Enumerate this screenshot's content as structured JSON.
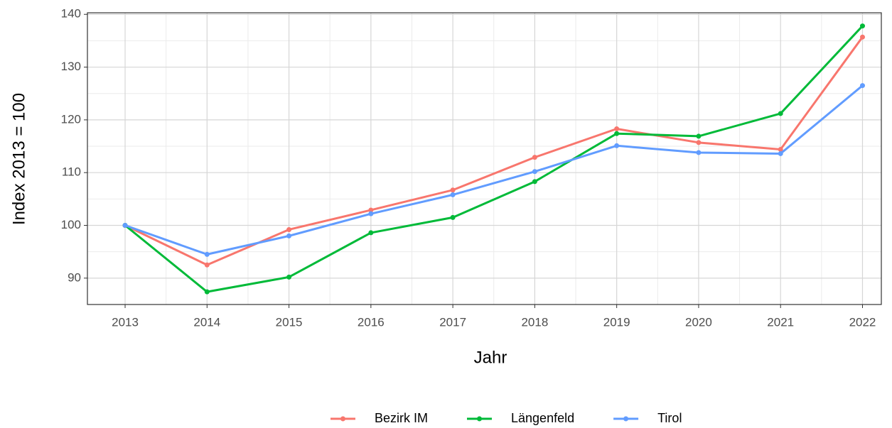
{
  "chart_data": {
    "type": "line",
    "x_label": "Jahr",
    "y_label": "Index  2013  = 100",
    "x": [
      2013,
      2014,
      2015,
      2016,
      2017,
      2018,
      2019,
      2020,
      2021,
      2022
    ],
    "series": [
      {
        "name": "Bezirk IM",
        "color": "#F8766D",
        "values": [
          100,
          92.5,
          99.2,
          102.9,
          106.7,
          112.9,
          118.3,
          115.7,
          114.4,
          135.7
        ]
      },
      {
        "name": "Längenfeld",
        "color": "#00BA38",
        "values": [
          100,
          87.4,
          90.2,
          98.6,
          101.5,
          108.3,
          117.4,
          116.9,
          121.2,
          137.8
        ]
      },
      {
        "name": "Tirol",
        "color": "#619CFF",
        "values": [
          100,
          94.5,
          98.0,
          102.2,
          105.8,
          110.2,
          115.1,
          113.8,
          113.6,
          126.5
        ]
      }
    ],
    "xlim": [
      2012.54,
      2022.23
    ],
    "xticks": [
      2013,
      2014,
      2015,
      2016,
      2017,
      2018,
      2019,
      2020,
      2021,
      2022
    ],
    "ylim": [
      85.0,
      140.3
    ],
    "yticks": [
      90,
      100,
      110,
      120,
      130,
      140
    ],
    "grid": true,
    "legend": "bottom"
  }
}
